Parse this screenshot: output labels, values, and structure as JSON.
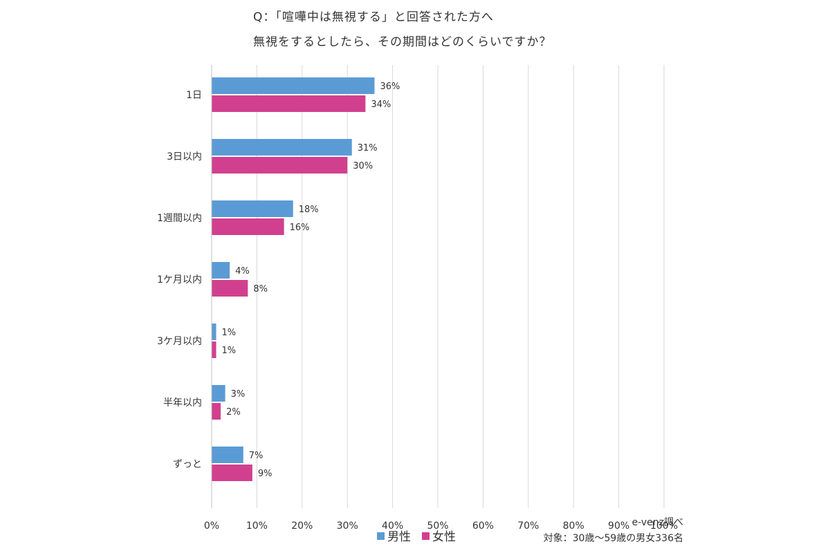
{
  "chart_data": {
    "type": "bar",
    "orientation": "horizontal",
    "title_lines": [
      "Q：「喧嘩中は無視する」と回答された方へ",
      "無視をするとしたら、その期間はどのくらいですか？"
    ],
    "categories": [
      "1日",
      "3日以内",
      "1週間以内",
      "1ケ月以内",
      "3ケ月以内",
      "半年以内",
      "ずっと"
    ],
    "series": [
      {
        "name": "男性",
        "color": "#5b9bd5",
        "values": [
          36,
          31,
          18,
          4,
          1,
          3,
          7
        ],
        "labels": [
          "36%",
          "31%",
          "18%",
          "4%",
          "1%",
          "3%",
          "7%"
        ]
      },
      {
        "name": "女性",
        "color": "#d1408e",
        "values": [
          34,
          30,
          16,
          8,
          1,
          2,
          9
        ],
        "labels": [
          "34%",
          "30%",
          "16%",
          "8%",
          "1%",
          "2%",
          "9%"
        ]
      }
    ],
    "xlim": [
      0,
      100
    ],
    "x_ticks": [
      "0%",
      "10%",
      "20%",
      "30%",
      "40%",
      "50%",
      "60%",
      "70%",
      "80%",
      "90%",
      "100%"
    ],
    "grid": "vertical",
    "legend_position": "bottom"
  },
  "notes": {
    "source": "e-venz調べ",
    "target": "対象：30歳〜59歳の男女336名"
  }
}
